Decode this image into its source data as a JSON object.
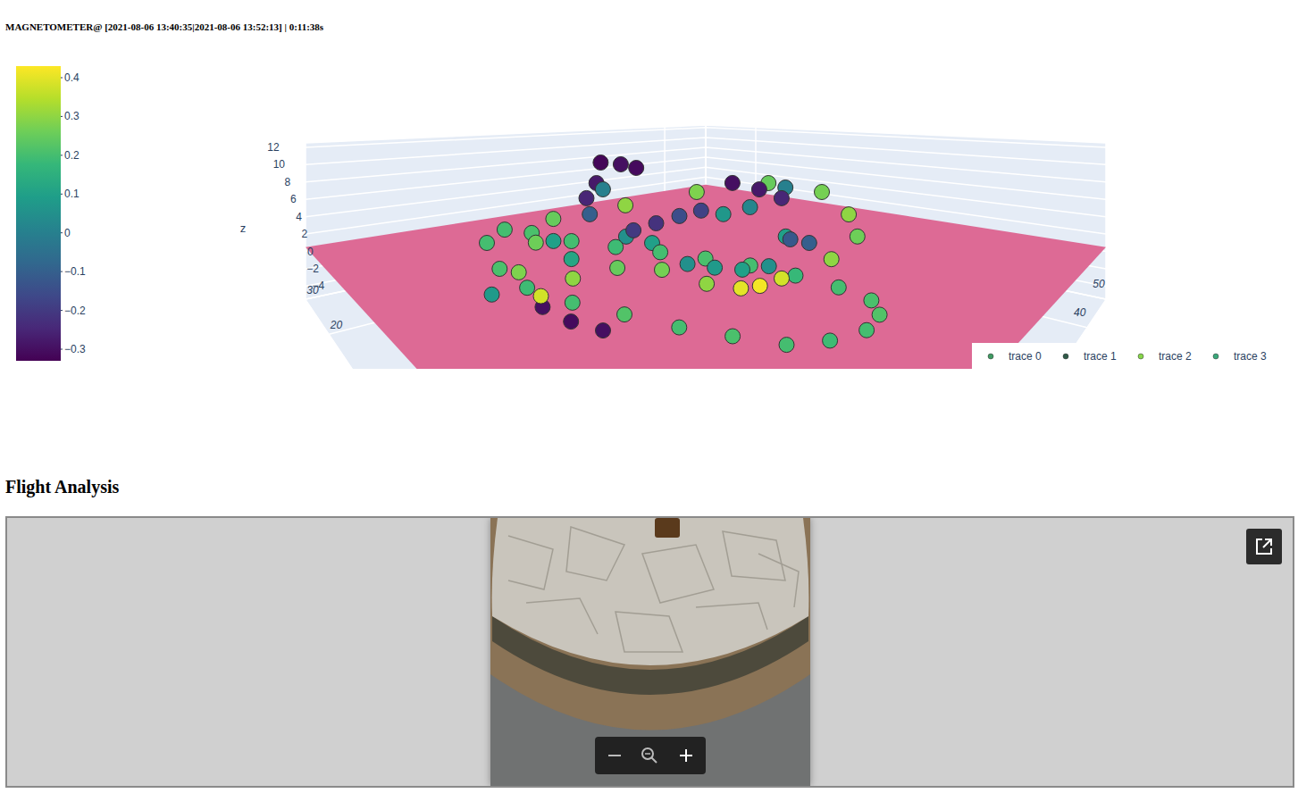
{
  "chart_data": {
    "type": "scatter3d",
    "title": "MAGNETOMETER@ [2021-08-06 13:40:35|2021-08-06 13:52:13] | 0:11:38s",
    "z_label": "z",
    "xlim": [
      -10,
      50
    ],
    "xticks": [
      40,
      50
    ],
    "ylim": [
      -20,
      30
    ],
    "yticks": [
      20,
      30
    ],
    "zlim": [
      -5.5,
      12.5
    ],
    "zticks": [
      12,
      10,
      8,
      6,
      4,
      2,
      0,
      {
        "value": -2,
        "label": "−2"
      },
      {
        "value": -4,
        "label": "−4"
      }
    ],
    "grid": true,
    "legend": "bottom-right",
    "marker": "circle",
    "colorbar": {
      "range": [
        -0.33,
        0.43
      ],
      "ticks": [
        0.4,
        0.3,
        0.2,
        0.1,
        0,
        {
          "value": -0.1,
          "label": "−0.1"
        },
        {
          "value": -0.2,
          "label": "−0.2"
        },
        {
          "value": -0.3,
          "label": "−0.3"
        }
      ]
    },
    "ground_plane": {
      "z": 0.5,
      "color": "#dc6592"
    },
    "series": [
      {
        "name": "trace 0",
        "color": "#3f9a62",
        "x": [
          2.7,
          0.1,
          -0.3,
          0.7,
          2.1,
          3.5,
          5.0,
          6.6,
          8.8,
          11.6,
          14.3,
          16.1,
          16.6,
          16.3,
          15.5,
          14.2,
          12.4,
          10.5,
          8.8,
          7.7,
          6.3
        ],
        "y": [
          16.9,
          9.5,
          4.6,
          0.4,
          -3.3,
          -6.7,
          -9.5,
          -12.0,
          -13.4,
          -14.2,
          -13.8,
          -12.5,
          -10.0,
          -6.8,
          -3.3,
          0.2,
          3.7,
          7.4,
          11.8,
          17.1,
          20.1
        ],
        "z": [
          1.6,
          1.5,
          1.4,
          1.3,
          1.3,
          1.2,
          1.2,
          1.1,
          1.2,
          1.3,
          1.4,
          1.5,
          1.6,
          1.7,
          1.8,
          1.8,
          1.9,
          1.9,
          1.8,
          1.7,
          1.7
        ],
        "color_values": [
          0.2,
          0.21,
          0.19,
          0.2,
          0.22,
          0.2,
          0.21,
          0.2,
          0.19,
          0.2,
          0.22,
          0.21,
          0.2,
          0.18,
          0.2,
          0.21,
          0.2,
          0.19,
          0.2,
          0.21,
          0.2
        ]
      },
      {
        "name": "trace 1",
        "color": "#2f5a48",
        "x": [
          26.4,
          27.2,
          26.2,
          20.5,
          15.9,
          13.2,
          10.0,
          13.3,
          17.1,
          20.6,
          33.5,
          32.0,
          29.1,
          -1.6,
          -1.5,
          -0.8,
          20.2,
          20.4
        ],
        "y": [
          29.3,
          25.9,
          21.7,
          22.8,
          18.8,
          14.7,
          4.5,
          5.1,
          5.8,
          6.1,
          12.0,
          7.1,
          2.4,
          0.5,
          -2.5,
          -4.7,
          -4.0,
          -5.6
        ],
        "z": [
          7.1,
          7.1,
          7.1,
          5.3,
          4.4,
          3.5,
          4.4,
          4.4,
          4.4,
          4.4,
          5.3,
          5.3,
          5.3,
          1.6,
          1.6,
          1.6,
          3.5,
          3.5
        ],
        "color_values": [
          -0.32,
          -0.3,
          -0.31,
          -0.28,
          -0.25,
          -0.1,
          -0.2,
          -0.22,
          -0.15,
          -0.18,
          -0.3,
          -0.28,
          -0.25,
          -0.3,
          -0.31,
          -0.3,
          -0.12,
          -0.1
        ]
      },
      {
        "name": "trace 2",
        "color": "#86d549",
        "x": [
          9.1,
          19.1,
          31.9,
          45.4,
          44.3,
          33.7,
          25.5,
          17.5,
          10.9,
          8.6,
          7.3,
          6.3,
          6.1,
          4.0,
          0.3,
          -3.0,
          -1.8,
          3.1
        ],
        "y": [
          15.3,
          15.8,
          16.4,
          14.7,
          6.1,
          -2.5,
          -7.2,
          -9.0,
          -9.0,
          -8.9,
          -8.4,
          -6.5,
          -2.7,
          -0.4,
          -0.2,
          -1.5,
          3.2,
          8.9
        ],
        "z": [
          3.5,
          3.5,
          3.5,
          3.5,
          3.5,
          3.5,
          3.5,
          3.5,
          3.5,
          3.5,
          3.5,
          3.5,
          3.5,
          3.5,
          3.5,
          3.5,
          3.5,
          3.5
        ],
        "color_values": [
          0.25,
          0.3,
          0.28,
          0.25,
          0.27,
          0.3,
          0.26,
          0.3,
          0.38,
          0.42,
          0.4,
          0.3,
          0.27,
          0.25,
          0.3,
          0.38,
          0.28,
          0.26
        ]
      },
      {
        "name": "trace 3",
        "color": "#3aa87a",
        "x": [
          18.2,
          12.1,
          12.4,
          10.3,
          11.2,
          12.4,
          14.6,
          32.2,
          26.7,
          23.4,
          4.2,
          6.1,
          -3.1,
          35.5
        ],
        "y": [
          18.7,
          7.8,
          4.7,
          -1.3,
          -3.2,
          -4.8,
          -5.6,
          8.5,
          8.1,
          -1.6,
          5.4,
          10.8,
          4.6,
          5.9
        ],
        "z": [
          5.3,
          2.6,
          2.6,
          2.6,
          2.6,
          2.6,
          2.6,
          2.6,
          2.6,
          2.6,
          2.6,
          2.6,
          1.6,
          5.3
        ],
        "color_values": [
          0.0,
          0.05,
          0.1,
          0.05,
          0.08,
          0.1,
          0.05,
          0.02,
          0.07,
          0.1,
          0.12,
          0.1,
          0.08,
          0.0
        ]
      }
    ]
  },
  "flight_analysis": {
    "heading": "Flight Analysis"
  }
}
